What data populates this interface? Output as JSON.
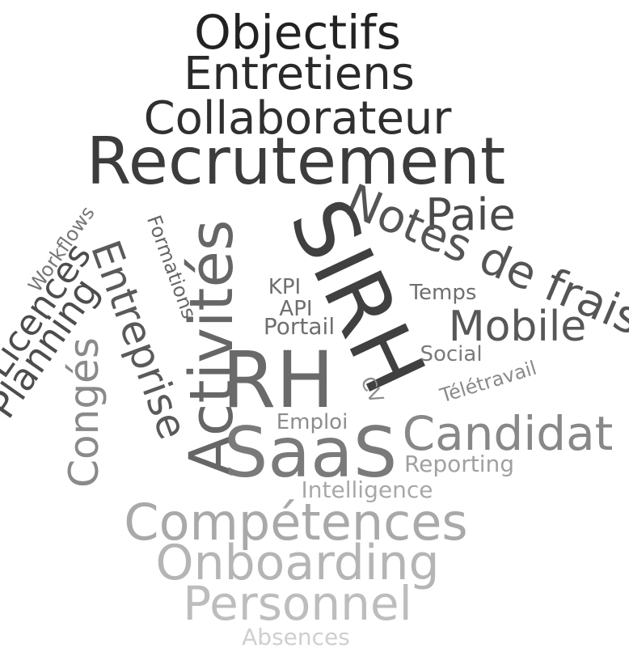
{
  "cloud": {
    "objectifs": {
      "text": "Objectifs",
      "color": "#222222"
    },
    "entretiens": {
      "text": "Entretiens",
      "color": "#2a2a2a"
    },
    "collaborateur": {
      "text": "Collaborateur",
      "color": "#2f2f2f"
    },
    "recrutement": {
      "text": "Recrutement",
      "color": "#3c3c3c"
    },
    "paie": {
      "text": "Paie",
      "color": "#4a4a4a"
    },
    "notes_de_frais": {
      "text": "Notes de frais",
      "color": "#555555"
    },
    "sirh": {
      "text": "SIRH",
      "color": "#404040"
    },
    "activites": {
      "text": "Activités",
      "color": "#666666"
    },
    "entreprise": {
      "text": "Entreprise",
      "color": "#5a5a5a"
    },
    "conges": {
      "text": "Congés",
      "color": "#8a8a8a"
    },
    "planning": {
      "text": "Planning",
      "color": "#4d4d4d"
    },
    "licences": {
      "text": "Licences",
      "color": "#4d4d4d"
    },
    "workflows": {
      "text": "Workflows",
      "color": "#777777"
    },
    "formations": {
      "text": "Formations",
      "color": "#666666"
    },
    "kpi": {
      "text": "KPI",
      "color": "#6f6f6f"
    },
    "api": {
      "text": "API",
      "color": "#6f6f6f"
    },
    "portail": {
      "text": "Portail",
      "color": "#6f6f6f"
    },
    "temps": {
      "text": "Temps",
      "color": "#6f6f6f"
    },
    "mobile": {
      "text": "Mobile",
      "color": "#575757"
    },
    "social": {
      "text": "Social",
      "color": "#7a7a7a"
    },
    "teletravail": {
      "text": "Télétravail",
      "color": "#8a8a8a"
    },
    "rh": {
      "text": "RH",
      "color": "#6a6a6a"
    },
    "cv": {
      "text": "CV",
      "color": "#8c8c8c"
    },
    "emploi": {
      "text": "Emploi",
      "color": "#8c8c8c"
    },
    "saas": {
      "text": "SaaS",
      "color": "#7a7a7a"
    },
    "candidat": {
      "text": "Candidat",
      "color": "#888888"
    },
    "reporting": {
      "text": "Reporting",
      "color": "#a0a0a0"
    },
    "intelligence": {
      "text": "Intelligence",
      "color": "#a8a8a8"
    },
    "competences": {
      "text": "Compétences",
      "color": "#a9a9a9"
    },
    "onboarding": {
      "text": "Onboarding",
      "color": "#b5b5b5"
    },
    "personnel": {
      "text": "Personnel",
      "color": "#bdbdbd"
    },
    "absences": {
      "text": "Absences",
      "color": "#cfcfcf"
    }
  }
}
